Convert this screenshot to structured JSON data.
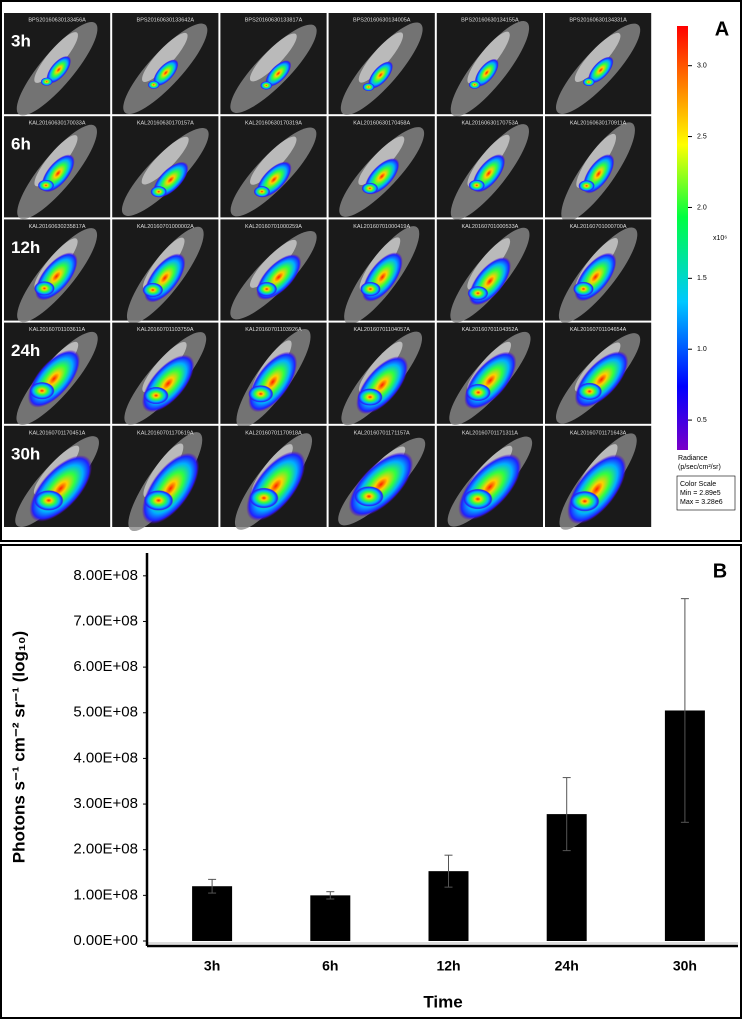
{
  "panel_a": {
    "label": "A",
    "row_labels": [
      "3h",
      "6h",
      "12h",
      "24h",
      "30h"
    ],
    "image_ids": [
      [
        "BPS20160630133456A",
        "BPS20160630133642A",
        "BPS20160630133817A",
        "BPS20160630134005A",
        "BPS20160630134155A",
        "BPS20160630134331A"
      ],
      [
        "KAL20160630170033A",
        "KAL20160630170157A",
        "KAL20160630170319A",
        "KAL20160630170458A",
        "KAL20160630170753A",
        "KAL20160630170911A"
      ],
      [
        "KAL20160630235817A",
        "KAL20160701000002A",
        "KAL20160701000259A",
        "KAL20160701000419A",
        "KAL20160701000533A",
        "KAL20160701000700A"
      ],
      [
        "KAL20160701103611A",
        "KAL20160701103759A",
        "KAL20160701103926A",
        "KAL20160701104057A",
        "KAL20160701104352A",
        "KAL20160701104654A"
      ],
      [
        "KAL20160701170451A",
        "KAL20160701170619A",
        "KAL20160701170918A",
        "KAL20160701171157A",
        "KAL20160701171311A",
        "KAL20160701171643A"
      ]
    ],
    "colorbar": {
      "lim": [
        0.289,
        3.28
      ],
      "ticks": [
        0.5,
        {
          "value": 1,
          "label": "1.0"
        },
        1.5,
        {
          "value": 2,
          "label": "2.0"
        },
        2.5,
        {
          "value": 3,
          "label": "3.0"
        }
      ],
      "multiplier": "x10⁶",
      "unit_label": [
        "Radiance",
        "(p/sec/cm²/sr)"
      ],
      "scale_box": [
        "Color Scale",
        "Min = 2.89e5",
        "Max = 3.28e6"
      ]
    }
  },
  "chart_data": {
    "type": "bar",
    "panel_label": "B",
    "x_label": "Time",
    "y_label": "Photons s⁻¹ cm⁻² sr⁻¹ (log₁₀)",
    "categories": [
      "3h",
      "6h",
      "12h",
      "24h",
      "30h"
    ],
    "values": [
      120000000,
      100000000,
      153000000,
      278000000,
      505000000
    ],
    "errors": [
      15000000,
      8000000,
      35000000,
      80000000,
      245000000
    ],
    "color": "#000000",
    "ylim": [
      0,
      850000000
    ],
    "yticks": [
      {
        "value": 0,
        "label": "0.00E+00"
      },
      {
        "value": 100000000,
        "label": "1.00E+08"
      },
      {
        "value": 200000000,
        "label": "2.00E+08"
      },
      {
        "value": 300000000,
        "label": "3.00E+08"
      },
      {
        "value": 400000000,
        "label": "4.00E+08"
      },
      {
        "value": 500000000,
        "label": "5.00E+08"
      },
      {
        "value": 600000000,
        "label": "6.00E+08"
      },
      {
        "value": 700000000,
        "label": "7.00E+08"
      },
      {
        "value": 800000000,
        "label": "8.00E+08"
      }
    ],
    "grid": false
  }
}
